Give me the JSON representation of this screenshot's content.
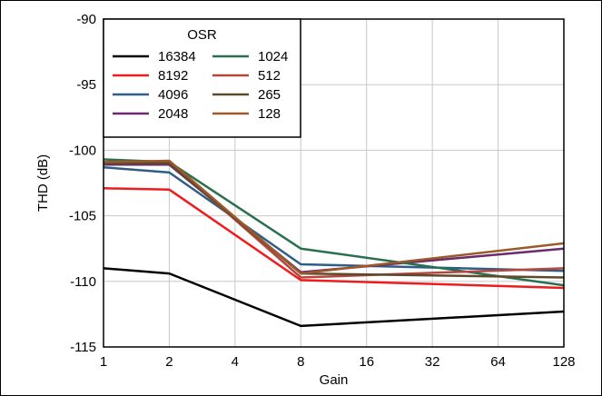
{
  "chart_data": {
    "type": "line",
    "xlabel": "Gain",
    "ylabel": "THD (dB)",
    "x_scale": "log2",
    "x": [
      1,
      2,
      8,
      128
    ],
    "x_ticks": [
      1,
      2,
      4,
      8,
      16,
      32,
      64,
      128
    ],
    "x_tick_labels": [
      "1",
      "2",
      "4",
      "8",
      "16",
      "32",
      "64",
      "128"
    ],
    "ylim": [
      -115,
      -90
    ],
    "y_ticks": [
      -115,
      -110,
      -105,
      -100,
      -95,
      -90
    ],
    "y_tick_labels": [
      "-115",
      "-110",
      "-105",
      "-100",
      "-95",
      "-90"
    ],
    "grid": true,
    "legend": {
      "title": "OSR",
      "placement": "top-left",
      "columns": 2
    },
    "series": [
      {
        "name": "16384",
        "color": "#000000",
        "values": [
          -109.0,
          -109.4,
          -113.4,
          -112.3
        ]
      },
      {
        "name": "8192",
        "color": "#ee1c1c",
        "values": [
          -102.9,
          -103.0,
          -109.9,
          -110.5
        ]
      },
      {
        "name": "4096",
        "color": "#2e5e87",
        "values": [
          -101.3,
          -101.7,
          -108.7,
          -109.2
        ]
      },
      {
        "name": "2048",
        "color": "#6b2a6b",
        "values": [
          -101.1,
          -101.1,
          -109.3,
          -107.5
        ]
      },
      {
        "name": "1024",
        "color": "#2a7050",
        "values": [
          -100.7,
          -100.9,
          -107.5,
          -110.3
        ]
      },
      {
        "name": "512",
        "color": "#b5463f",
        "values": [
          -100.9,
          -100.9,
          -109.7,
          -109.0
        ]
      },
      {
        "name": "265",
        "color": "#5e4a2a",
        "values": [
          -101.0,
          -101.0,
          -109.4,
          -109.7
        ]
      },
      {
        "name": "128",
        "color": "#9c5a2a",
        "values": [
          -100.9,
          -100.8,
          -109.4,
          -107.1
        ]
      }
    ]
  }
}
